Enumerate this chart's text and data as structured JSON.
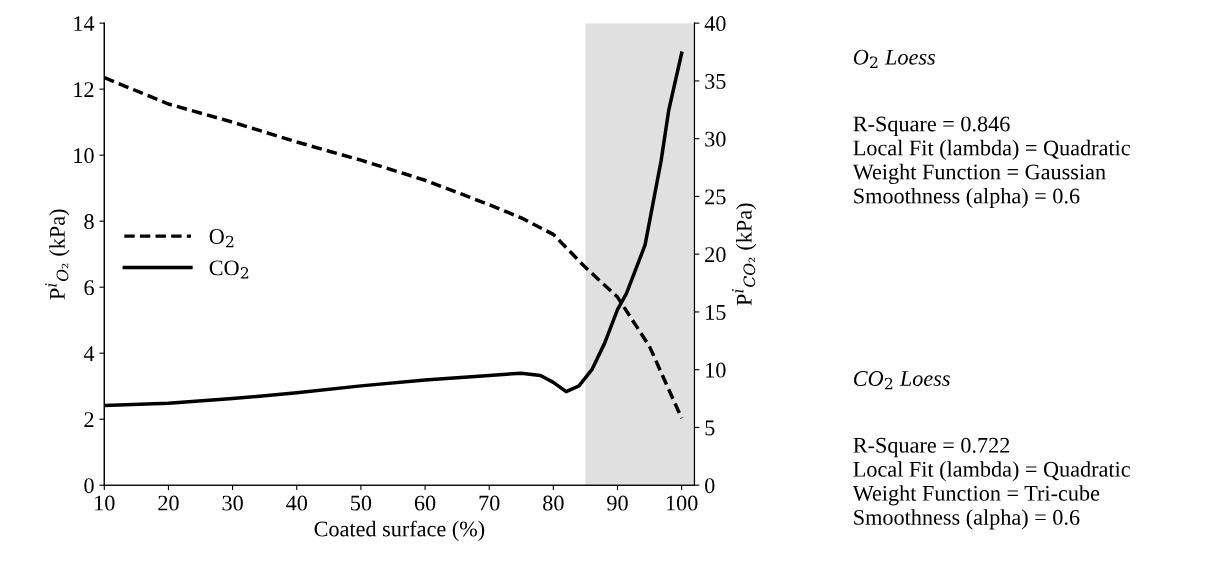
{
  "chart_data": {
    "type": "line",
    "xlabel": "Coated surface (%)",
    "ylabel": "P$^{i}$$_{O₂}$ (kPa)",
    "y2label": "P$^{i}$$_{CO₂}$ (kPa)",
    "xlim": [
      10,
      102
    ],
    "xticks": [
      10,
      20,
      30,
      40,
      50,
      60,
      70,
      80,
      90,
      100
    ],
    "ylim": [
      0,
      14
    ],
    "yticks": [
      0,
      2,
      4,
      6,
      8,
      10,
      12,
      14
    ],
    "y2lim": [
      0,
      40
    ],
    "y2ticks": [
      0,
      5,
      10,
      15,
      20,
      25,
      30,
      35,
      40
    ],
    "grid": false,
    "legend": "center left",
    "marker": "none",
    "bands": [
      {
        "axis": "x",
        "from": 85,
        "to": 102,
        "color": "#e0e0e0"
      }
    ],
    "series": [
      {
        "name": "O$_{2}$",
        "color": "#000000",
        "line_style": "dashed",
        "x": [
          10,
          20,
          30,
          40,
          50,
          60,
          70,
          75,
          80,
          85,
          90,
          95,
          100
        ],
        "values": [
          12.35,
          11.55,
          11.0,
          10.4,
          9.85,
          9.24,
          8.5,
          8.1,
          7.6,
          6.6,
          5.7,
          4.2,
          2.03
        ]
      },
      {
        "name": "CO$_{2}$",
        "color": "#000000",
        "line_style": "solid",
        "axis": "y2",
        "x": [
          10,
          20,
          30,
          40,
          50,
          60,
          70,
          75,
          78,
          80,
          82,
          84,
          86,
          88,
          90,
          91.4,
          94.3,
          96.8,
          98,
          100
        ],
        "values": [
          6.9,
          7.1,
          7.5,
          8.0,
          8.6,
          9.1,
          9.5,
          9.7,
          9.5,
          8.9,
          8.1,
          8.6,
          10.0,
          12.3,
          15.2,
          16.6,
          20.8,
          28.1,
          32.5,
          37.4
        ]
      }
    ],
    "annotations": [
      "O$_{2}$ Loess",
      "R-Square = 0.846\nLocal Fit (lambda) = Quadratic\nWeight Function = Gaussian\nSmoothness (alpha) = 0.6",
      "CO$_{2}$ Loess",
      "R-Square = 0.722\nLocal Fit (lambda) = Quadratic\nWeight Function = Tri-cube\nSmoothness (alpha) = 0.6"
    ]
  }
}
